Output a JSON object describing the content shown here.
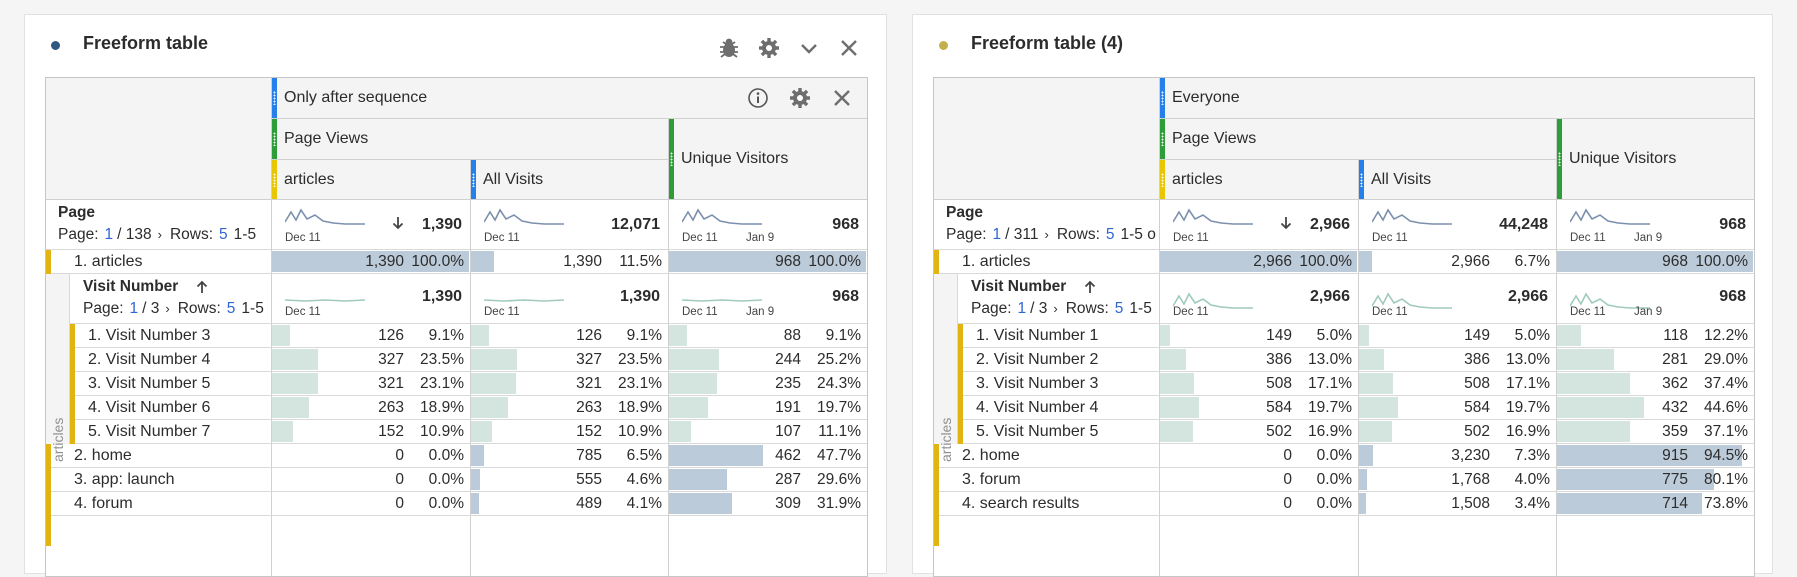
{
  "panels": [
    {
      "title": "Freeform table",
      "dot_color": "#31587f",
      "segment": "Only after sequence",
      "segment_color": "#2680eb",
      "metric_group": "Page Views",
      "col_articles": "articles",
      "col_all_visits": "All Visits",
      "col_unique": "Unique Visitors",
      "dim_title": "Page",
      "pager": {
        "page_label": "Page:",
        "page": "1",
        "of": "/ 138",
        "rows_label": "Rows:",
        "rows": "5",
        "range": "1-5"
      },
      "totals": [
        "1,390",
        "12,071",
        "968"
      ],
      "spark_dates": [
        "Dec 11",
        "Dec 11",
        "Dec 11",
        "Jan 9"
      ],
      "top_row": {
        "label": "1.  articles",
        "v1": "1,390",
        "p1": "100.0%",
        "v2": "1,390",
        "p2": "11.5%",
        "v3": "968",
        "p3": "100.0%",
        "f1": 1.0,
        "f2": 0.115,
        "f3": 1.0
      },
      "sub_dim": "Visit Number",
      "sub_pager": {
        "page_label": "Page:",
        "page": "1",
        "of": "/ 3",
        "rows_label": "Rows:",
        "rows": "5",
        "range": "1-5"
      },
      "sub_totals": [
        "1,390",
        "1,390",
        "968"
      ],
      "sub_dates": [
        "Dec 11",
        "Dec 11",
        "Dec 11",
        "Jan 9"
      ],
      "side_label": "articles",
      "sub_rows": [
        {
          "label": "1.  Visit Number 3",
          "v1": "126",
          "p1": "9.1%",
          "v2": "126",
          "p2": "9.1%",
          "v3": "88",
          "p3": "9.1%",
          "f1": 0.091,
          "f2": 0.091,
          "f3": 0.091
        },
        {
          "label": "2.  Visit Number 4",
          "v1": "327",
          "p1": "23.5%",
          "v2": "327",
          "p2": "23.5%",
          "v3": "244",
          "p3": "25.2%",
          "f1": 0.235,
          "f2": 0.235,
          "f3": 0.252
        },
        {
          "label": "3.  Visit Number 5",
          "v1": "321",
          "p1": "23.1%",
          "v2": "321",
          "p2": "23.1%",
          "v3": "235",
          "p3": "24.3%",
          "f1": 0.231,
          "f2": 0.231,
          "f3": 0.243
        },
        {
          "label": "4.  Visit Number 6",
          "v1": "263",
          "p1": "18.9%",
          "v2": "263",
          "p2": "18.9%",
          "v3": "191",
          "p3": "19.7%",
          "f1": 0.189,
          "f2": 0.189,
          "f3": 0.197
        },
        {
          "label": "5.  Visit Number 7",
          "v1": "152",
          "p1": "10.9%",
          "v2": "152",
          "p2": "10.9%",
          "v3": "107",
          "p3": "11.1%",
          "f1": 0.109,
          "f2": 0.109,
          "f3": 0.111
        }
      ],
      "more_rows": [
        {
          "label": "2.  home",
          "v1": "0",
          "p1": "0.0%",
          "v2": "785",
          "p2": "6.5%",
          "v3": "462",
          "p3": "47.7%",
          "f1": 0,
          "f2": 0.065,
          "f3": 0.477
        },
        {
          "label": "3.  app: launch",
          "v1": "0",
          "p1": "0.0%",
          "v2": "555",
          "p2": "4.6%",
          "v3": "287",
          "p3": "29.6%",
          "f1": 0,
          "f2": 0.046,
          "f3": 0.296
        },
        {
          "label": "4.  forum",
          "v1": "0",
          "p1": "0.0%",
          "v2": "489",
          "p2": "4.1%",
          "v3": "309",
          "p3": "31.9%",
          "f1": 0,
          "f2": 0.041,
          "f3": 0.319
        }
      ]
    },
    {
      "title": "Freeform table (4)",
      "dot_color": "#c2b04e",
      "segment": "Everyone",
      "segment_color": "#2680eb",
      "metric_group": "Page Views",
      "col_articles": "articles",
      "col_all_visits": "All Visits",
      "col_unique": "Unique Visitors",
      "dim_title": "Page",
      "pager": {
        "page_label": "Page:",
        "page": "1",
        "of": "/ 311",
        "rows_label": "Rows:",
        "rows": "5",
        "range": "1-5 o"
      },
      "totals": [
        "2,966",
        "44,248",
        "968"
      ],
      "spark_dates": [
        "Dec 11",
        "Dec 11",
        "Dec 11",
        "Jan 9"
      ],
      "top_row": {
        "label": "1.  articles",
        "v1": "2,966",
        "p1": "100.0%",
        "v2": "2,966",
        "p2": "6.7%",
        "v3": "968",
        "p3": "100.0%",
        "f1": 1.0,
        "f2": 0.067,
        "f3": 1.0
      },
      "sub_dim": "Visit Number",
      "sub_pager": {
        "page_label": "Page:",
        "page": "1",
        "of": "/ 3",
        "rows_label": "Rows:",
        "rows": "5",
        "range": "1-5"
      },
      "sub_totals": [
        "2,966",
        "2,966",
        "968"
      ],
      "sub_dates": [
        "Dec 11",
        "Dec 11",
        "Dec 11",
        "Jan 9"
      ],
      "side_label": "articles",
      "sub_rows": [
        {
          "label": "1.  Visit Number 1",
          "v1": "149",
          "p1": "5.0%",
          "v2": "149",
          "p2": "5.0%",
          "v3": "118",
          "p3": "12.2%",
          "f1": 0.05,
          "f2": 0.05,
          "f3": 0.122
        },
        {
          "label": "2.  Visit Number 2",
          "v1": "386",
          "p1": "13.0%",
          "v2": "386",
          "p2": "13.0%",
          "v3": "281",
          "p3": "29.0%",
          "f1": 0.13,
          "f2": 0.13,
          "f3": 0.29
        },
        {
          "label": "3.  Visit Number 3",
          "v1": "508",
          "p1": "17.1%",
          "v2": "508",
          "p2": "17.1%",
          "v3": "362",
          "p3": "37.4%",
          "f1": 0.171,
          "f2": 0.171,
          "f3": 0.374
        },
        {
          "label": "4.  Visit Number 4",
          "v1": "584",
          "p1": "19.7%",
          "v2": "584",
          "p2": "19.7%",
          "v3": "432",
          "p3": "44.6%",
          "f1": 0.197,
          "f2": 0.197,
          "f3": 0.446
        },
        {
          "label": "5.  Visit Number 5",
          "v1": "502",
          "p1": "16.9%",
          "v2": "502",
          "p2": "16.9%",
          "v3": "359",
          "p3": "37.1%",
          "f1": 0.169,
          "f2": 0.169,
          "f3": 0.371
        }
      ],
      "more_rows": [
        {
          "label": "2.  home",
          "v1": "0",
          "p1": "0.0%",
          "v2": "3,230",
          "p2": "7.3%",
          "v3": "915",
          "p3": "94.5%",
          "f1": 0,
          "f2": 0.073,
          "f3": 0.945
        },
        {
          "label": "3.  forum",
          "v1": "0",
          "p1": "0.0%",
          "v2": "1,768",
          "p2": "4.0%",
          "v3": "775",
          "p3": "80.1%",
          "f1": 0,
          "f2": 0.04,
          "f3": 0.801
        },
        {
          "label": "4.  search results",
          "v1": "0",
          "p1": "0.0%",
          "v2": "1,508",
          "p2": "3.4%",
          "v3": "714",
          "p3": "73.8%",
          "f1": 0,
          "f2": 0.034,
          "f3": 0.738
        }
      ]
    }
  ],
  "colors": {
    "grip_blue": "#2680eb",
    "grip_green": "#2d9d3a",
    "grip_yellow": "#e8c600",
    "row_band": "#e1b412",
    "bar_main": "#bccbd9",
    "bar_sub": "#d4e4df",
    "spark_main": "#7c90ae",
    "spark_sub": "#9fcabd"
  }
}
